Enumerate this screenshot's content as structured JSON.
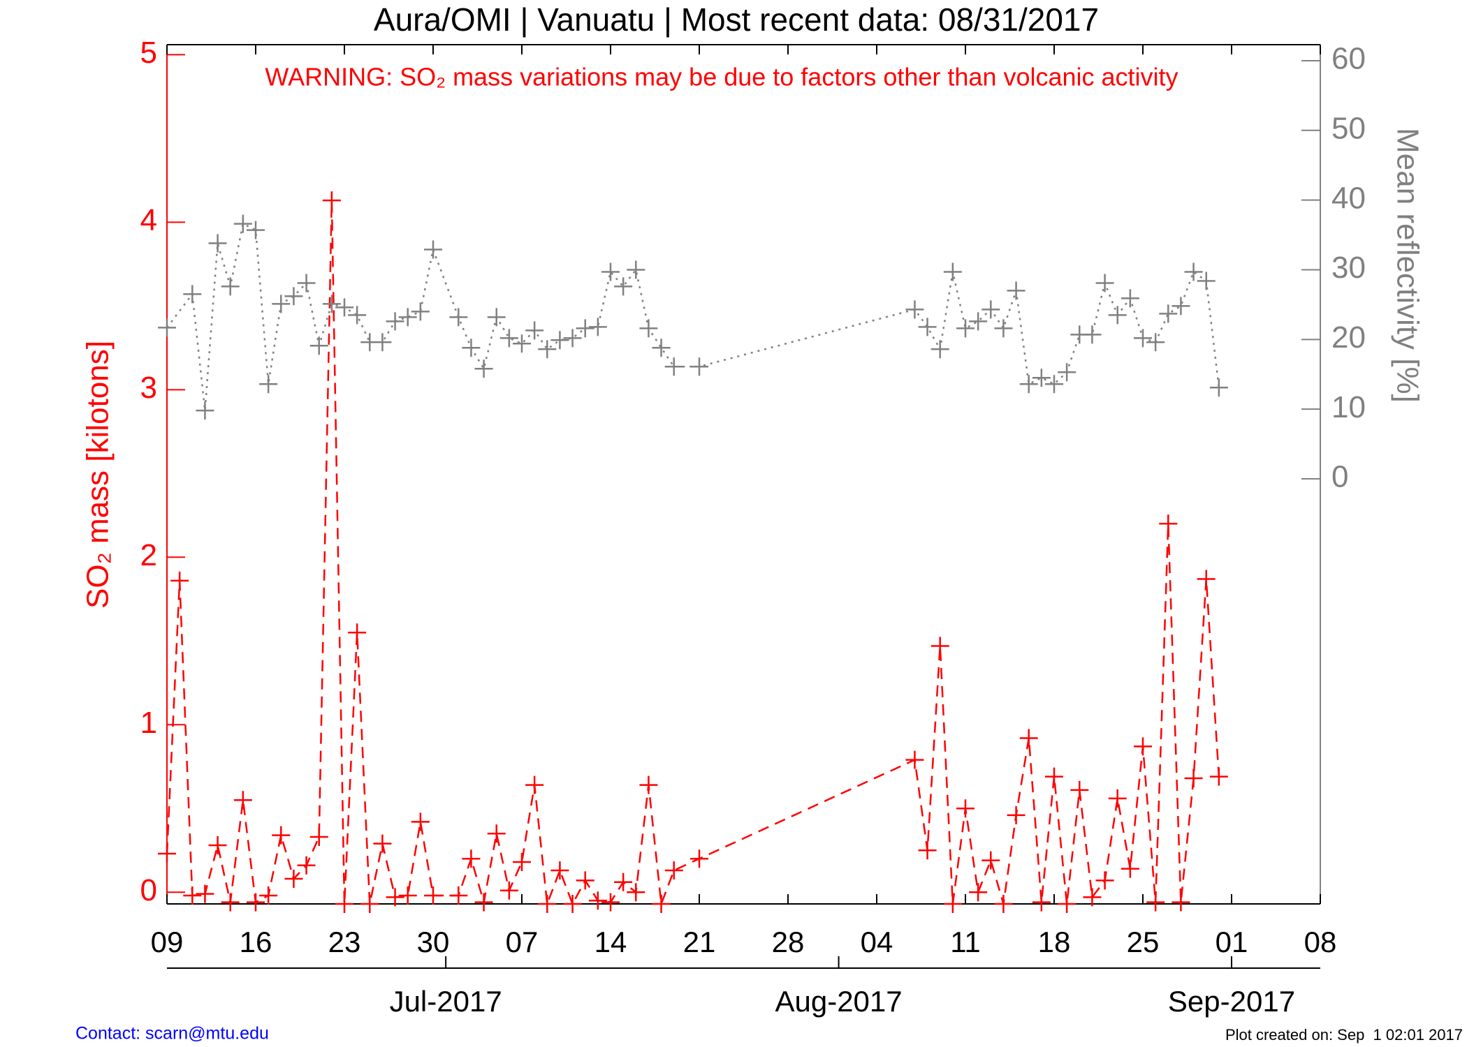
{
  "chart_data": {
    "type": "line",
    "title": "Aura/OMI | Vanuatu | Most recent data: 08/31/2017",
    "annotation": "WARNING: SO₂ mass variations may be due to factors other than volcanic activity",
    "ylabel": "SO₂ mass [kilotons]",
    "y2label": "Mean reflectivity [%]",
    "xlim": [
      "2017-06-09",
      "2017-09-08"
    ],
    "xticks": [
      {
        "value": "2017-06-09",
        "label": "09"
      },
      {
        "value": "2017-06-16",
        "label": "16"
      },
      {
        "value": "2017-06-23",
        "label": "23"
      },
      {
        "value": "2017-06-30",
        "label": "30"
      },
      {
        "value": "2017-07-07",
        "label": "07"
      },
      {
        "value": "2017-07-14",
        "label": "14"
      },
      {
        "value": "2017-07-21",
        "label": "21"
      },
      {
        "value": "2017-07-28",
        "label": "28"
      },
      {
        "value": "2017-08-04",
        "label": "04"
      },
      {
        "value": "2017-08-11",
        "label": "11"
      },
      {
        "value": "2017-08-18",
        "label": "18"
      },
      {
        "value": "2017-08-25",
        "label": "25"
      },
      {
        "value": "2017-09-01",
        "label": "01"
      },
      {
        "value": "2017-09-08",
        "label": "08"
      }
    ],
    "month_ticks": [
      {
        "value": "2017-07-01",
        "label": "Jul-2017"
      },
      {
        "value": "2017-08-01",
        "label": "Aug-2017"
      },
      {
        "value": "2017-09-01",
        "label": "Sep-2017"
      }
    ],
    "ylim": [
      -0.07,
      5.06
    ],
    "yticks": [
      0,
      1,
      2,
      3,
      4,
      5
    ],
    "y2lim": [
      -61,
      62.3
    ],
    "y2ticks": [
      0,
      10,
      20,
      30,
      40,
      50,
      60
    ],
    "series": [
      {
        "color": "#ff0000",
        "line_style": "dashed",
        "x": [
          "2017-06-09",
          "2017-06-10",
          "2017-06-11",
          "2017-06-12",
          "2017-06-13",
          "2017-06-14",
          "2017-06-15",
          "2017-06-16",
          "2017-06-17",
          "2017-06-18",
          "2017-06-19",
          "2017-06-20",
          "2017-06-21",
          "2017-06-22",
          "2017-06-23",
          "2017-06-24",
          "2017-06-25",
          "2017-06-26",
          "2017-06-27",
          "2017-06-28",
          "2017-06-29",
          "2017-06-30",
          "2017-07-02",
          "2017-07-03",
          "2017-07-04",
          "2017-07-05",
          "2017-07-06",
          "2017-07-07",
          "2017-07-08",
          "2017-07-09",
          "2017-07-10",
          "2017-07-11",
          "2017-07-12",
          "2017-07-13",
          "2017-07-14",
          "2017-07-15",
          "2017-07-16",
          "2017-07-17",
          "2017-07-18",
          "2017-07-19",
          "2017-07-21",
          "2017-08-07",
          "2017-08-08",
          "2017-08-09",
          "2017-08-10",
          "2017-08-11",
          "2017-08-12",
          "2017-08-13",
          "2017-08-14",
          "2017-08-15",
          "2017-08-16",
          "2017-08-17",
          "2017-08-18",
          "2017-08-19",
          "2017-08-20",
          "2017-08-21",
          "2017-08-22",
          "2017-08-23",
          "2017-08-24",
          "2017-08-25",
          "2017-08-26",
          "2017-08-27",
          "2017-08-28",
          "2017-08-29",
          "2017-08-30",
          "2017-08-31"
        ],
        "values": [
          0.23,
          1.86,
          -0.02,
          -0.01,
          0.28,
          -0.06,
          0.55,
          -0.06,
          -0.02,
          0.34,
          0.08,
          0.16,
          0.33,
          4.13,
          -0.07,
          1.55,
          -0.07,
          0.29,
          -0.03,
          -0.02,
          0.42,
          -0.02,
          -0.02,
          0.2,
          -0.06,
          0.35,
          0.01,
          0.18,
          0.64,
          -0.07,
          0.13,
          -0.07,
          0.07,
          -0.05,
          -0.06,
          0.06,
          0,
          0.64,
          -0.07,
          0.13,
          0.2,
          0.79,
          0.25,
          1.47,
          -0.07,
          0.5,
          0,
          0.19,
          -0.07,
          0.46,
          0.92,
          -0.06,
          0.69,
          -0.07,
          0.61,
          -0.03,
          0.07,
          0.56,
          0.14,
          0.87,
          -0.06,
          2.2,
          -0.06,
          0.68,
          1.87,
          0.69
        ]
      },
      {
        "color": "#808080",
        "line_style": "dotted",
        "axis": "y2",
        "x": [
          "2017-06-09",
          "2017-06-11",
          "2017-06-12",
          "2017-06-13",
          "2017-06-14",
          "2017-06-15",
          "2017-06-16",
          "2017-06-17",
          "2017-06-18",
          "2017-06-19",
          "2017-06-20",
          "2017-06-21",
          "2017-06-22",
          "2017-06-23",
          "2017-06-24",
          "2017-06-25",
          "2017-06-26",
          "2017-06-27",
          "2017-06-28",
          "2017-06-29",
          "2017-06-30",
          "2017-07-02",
          "2017-07-03",
          "2017-07-04",
          "2017-07-05",
          "2017-07-06",
          "2017-07-07",
          "2017-07-08",
          "2017-07-09",
          "2017-07-10",
          "2017-07-11",
          "2017-07-12",
          "2017-07-13",
          "2017-07-14",
          "2017-07-15",
          "2017-07-16",
          "2017-07-17",
          "2017-07-18",
          "2017-07-19",
          "2017-07-21",
          "2017-08-07",
          "2017-08-08",
          "2017-08-09",
          "2017-08-10",
          "2017-08-11",
          "2017-08-12",
          "2017-08-13",
          "2017-08-14",
          "2017-08-15",
          "2017-08-16",
          "2017-08-17",
          "2017-08-18",
          "2017-08-19",
          "2017-08-20",
          "2017-08-21",
          "2017-08-22",
          "2017-08-23",
          "2017-08-24",
          "2017-08-25",
          "2017-08-26",
          "2017-08-27",
          "2017-08-28",
          "2017-08-29",
          "2017-08-30",
          "2017-08-31"
        ],
        "values": [
          21.7,
          26.5,
          9.8,
          33.8,
          27.6,
          36.6,
          35.7,
          13.6,
          25.1,
          26.2,
          28.1,
          19.1,
          25.1,
          24.6,
          23.5,
          19.6,
          19.6,
          22.6,
          23.2,
          24,
          32.9,
          23.2,
          18.8,
          15.8,
          23.2,
          20.2,
          19.4,
          21.3,
          18.6,
          19.9,
          20.2,
          21.6,
          21.8,
          29.7,
          27.6,
          30,
          21.6,
          18.8,
          16.1,
          16.1,
          24.3,
          21.8,
          18.6,
          29.7,
          21.6,
          22.6,
          24.3,
          21.6,
          27,
          13.6,
          14.5,
          13.6,
          15.3,
          20.7,
          20.7,
          28.1,
          23.5,
          25.9,
          20.2,
          19.6,
          23.7,
          24.8,
          29.7,
          28.4,
          13.1
        ]
      }
    ]
  },
  "footer": {
    "contact": "Contact: scarn@mtu.edu",
    "created": "Plot created on: Sep  1 02:01 2017"
  }
}
